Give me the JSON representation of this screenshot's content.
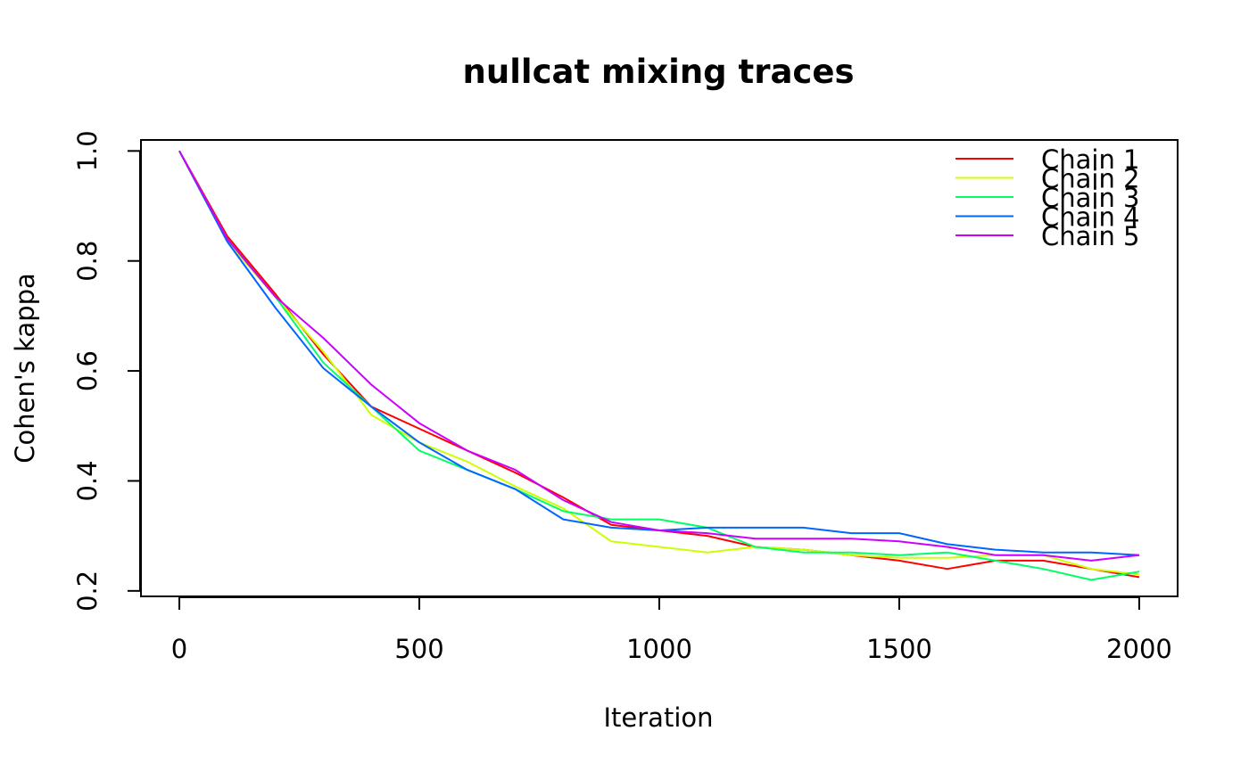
{
  "chart_data": {
    "type": "line",
    "title": "nullcat mixing traces",
    "xlabel": "Iteration",
    "ylabel": "Cohen's kappa",
    "xlim": [
      -80,
      2080
    ],
    "ylim": [
      0.19,
      1.02
    ],
    "xticks": [
      0,
      500,
      1000,
      1500,
      2000
    ],
    "yticks": [
      0.2,
      0.4,
      0.6,
      0.8,
      1.0
    ],
    "xtick_labels": [
      "0",
      "500",
      "1000",
      "1500",
      "2000"
    ],
    "ytick_labels": [
      "0.2",
      "0.4",
      "0.6",
      "0.8",
      "1.0"
    ],
    "grid": false,
    "legend_position": "top-right",
    "x": [
      0,
      100,
      200,
      300,
      400,
      500,
      600,
      700,
      800,
      900,
      1000,
      1100,
      1200,
      1300,
      1400,
      1500,
      1600,
      1700,
      1800,
      1900,
      2000
    ],
    "series": [
      {
        "name": "Chain 1",
        "color": "#FF0000",
        "values": [
          1.0,
          0.845,
          0.74,
          0.63,
          0.535,
          0.495,
          0.455,
          0.415,
          0.37,
          0.32,
          0.31,
          0.3,
          0.28,
          0.275,
          0.265,
          0.255,
          0.24,
          0.255,
          0.255,
          0.24,
          0.225
        ]
      },
      {
        "name": "Chain 2",
        "color": "#CCFF00",
        "values": [
          1.0,
          0.835,
          0.735,
          0.635,
          0.52,
          0.47,
          0.435,
          0.39,
          0.35,
          0.29,
          0.28,
          0.27,
          0.28,
          0.275,
          0.265,
          0.26,
          0.26,
          0.265,
          0.265,
          0.24,
          0.23
        ]
      },
      {
        "name": "Chain 3",
        "color": "#00FF66",
        "values": [
          1.0,
          0.84,
          0.735,
          0.615,
          0.535,
          0.455,
          0.42,
          0.385,
          0.345,
          0.33,
          0.33,
          0.315,
          0.28,
          0.27,
          0.27,
          0.265,
          0.27,
          0.255,
          0.24,
          0.22,
          0.235
        ]
      },
      {
        "name": "Chain 4",
        "color": "#0066FF",
        "values": [
          1.0,
          0.835,
          0.715,
          0.605,
          0.535,
          0.47,
          0.42,
          0.385,
          0.33,
          0.315,
          0.31,
          0.315,
          0.315,
          0.315,
          0.305,
          0.305,
          0.285,
          0.275,
          0.27,
          0.27,
          0.265
        ]
      },
      {
        "name": "Chain 5",
        "color": "#CC00FF",
        "values": [
          1.0,
          0.84,
          0.735,
          0.66,
          0.575,
          0.505,
          0.455,
          0.42,
          0.365,
          0.325,
          0.31,
          0.305,
          0.295,
          0.295,
          0.295,
          0.29,
          0.28,
          0.265,
          0.265,
          0.255,
          0.265
        ]
      }
    ]
  }
}
